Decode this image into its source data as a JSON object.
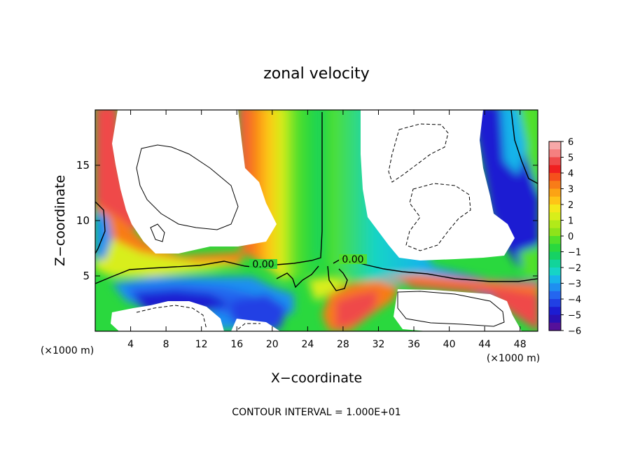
{
  "chart_data": {
    "type": "heatmap",
    "title": "zonal velocity",
    "xlabel": "X−coordinate",
    "ylabel": "Z−coordinate",
    "x_unit_left": "(×1000 m)",
    "x_unit_right": "(×1000 m)",
    "xlim": [
      0,
      50
    ],
    "ylim": [
      0,
      20
    ],
    "x_ticks": [
      4,
      8,
      12,
      16,
      20,
      24,
      28,
      32,
      36,
      40,
      44,
      48
    ],
    "y_ticks": [
      5,
      10,
      15
    ],
    "colorbar": {
      "ticks": [
        "6",
        "5",
        "4",
        "3",
        "2",
        "1",
        "0",
        "−1",
        "−2",
        "−3",
        "−4",
        "−5",
        "−6"
      ],
      "range": [
        -6,
        6
      ],
      "colors_top_to_bottom": [
        "#f7a8a8",
        "#f58080",
        "#ef4a4a",
        "#f02020",
        "#f5501c",
        "#f87c18",
        "#fca314",
        "#ffc416",
        "#f4e81a",
        "#d8ee1a",
        "#b2ea19",
        "#8ee31a",
        "#52e02a",
        "#2ad83e",
        "#16d264",
        "#12d49a",
        "#16d4c6",
        "#18b4ea",
        "#1e8ff0",
        "#2466ef",
        "#2040e4",
        "#1c1cd2",
        "#2a10b4",
        "#55109a"
      ]
    },
    "contour_labels": [
      "0.00",
      "0.00"
    ],
    "footer": "CONTOUR INTERVAL = 1.000E+01"
  }
}
